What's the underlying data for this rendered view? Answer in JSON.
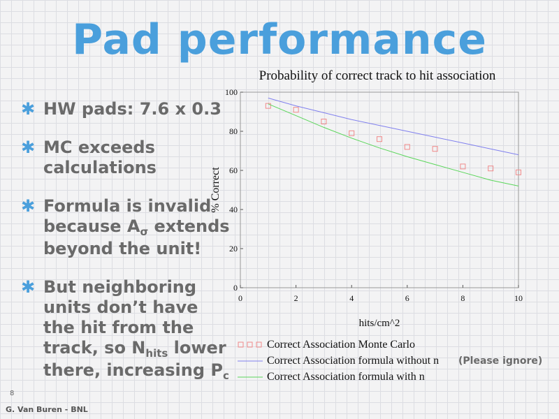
{
  "slide": {
    "title": "Pad performance",
    "bullets": [
      {
        "text": "HW pads: 7.6 x 0.3"
      },
      {
        "text": "MC exceeds calculations"
      },
      {
        "pre": "Formula is invalid because A",
        "sub": "σ",
        "post": " extends beyond the unit!"
      },
      {
        "pre": "But neighboring units don’t have the hit from the track, so N",
        "sub": "hits",
        "mid": " lower there, increasing P",
        "sub2": "c"
      }
    ],
    "page_number": "8",
    "footer": "G. Van Buren - BNL",
    "note": "(Please ignore)"
  },
  "colors": {
    "accent": "#4a9fdc",
    "text_gray": "#6a6a6a",
    "mc": "#f08a8a",
    "formula_without_n": "#8080ee",
    "formula_with_n": "#5ad65a"
  },
  "chart_data": {
    "type": "line",
    "title": "Probability of correct track to hit association",
    "xlabel": "hits/cm^2",
    "ylabel": "% Correct",
    "xlim": [
      0,
      10
    ],
    "ylim": [
      0,
      100
    ],
    "xticks": [
      0,
      2,
      4,
      6,
      8,
      10
    ],
    "yticks": [
      0,
      20,
      40,
      60,
      80,
      100
    ],
    "legend_position": "bottom",
    "series": [
      {
        "name": "Correct Association Monte Carlo",
        "style": "markers",
        "x": [
          1,
          2,
          3,
          4,
          5,
          6,
          7,
          8,
          9,
          10
        ],
        "y": [
          93,
          91,
          85,
          79,
          76,
          72,
          71,
          62,
          61,
          59
        ]
      },
      {
        "name": "Correct Association formula without n",
        "style": "line",
        "x": [
          1,
          2,
          3,
          4,
          5,
          6,
          7,
          8,
          9,
          10
        ],
        "y": [
          97,
          93,
          89.5,
          86,
          83,
          80,
          77,
          74,
          71,
          68
        ]
      },
      {
        "name": "Correct Association formula with n",
        "style": "line",
        "x": [
          1,
          2,
          3,
          4,
          5,
          6,
          7,
          8,
          9,
          10
        ],
        "y": [
          94,
          88,
          82,
          76.5,
          71.5,
          67,
          63,
          59,
          55,
          52
        ]
      }
    ]
  }
}
